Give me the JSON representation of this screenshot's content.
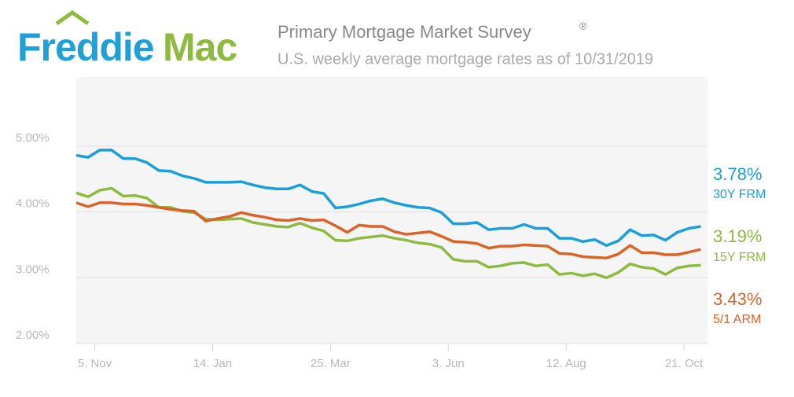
{
  "logo": {
    "part1": "Freddie",
    "part2": "Mac"
  },
  "chart_data": {
    "type": "line",
    "title": "Primary Mortgage Market Survey",
    "title_mark": "®",
    "subtitle": "U.S. weekly average mortgage rates as of 10/31/2019",
    "x": [
      "2018-10-25",
      "2018-11-01",
      "2018-11-08",
      "2018-11-15",
      "2018-11-22",
      "2018-11-29",
      "2018-12-06",
      "2018-12-13",
      "2018-12-20",
      "2018-12-27",
      "2019-01-03",
      "2019-01-10",
      "2019-01-17",
      "2019-01-24",
      "2019-01-31",
      "2019-02-07",
      "2019-02-14",
      "2019-02-21",
      "2019-02-28",
      "2019-03-07",
      "2019-03-14",
      "2019-03-21",
      "2019-03-28",
      "2019-04-04",
      "2019-04-11",
      "2019-04-18",
      "2019-04-25",
      "2019-05-02",
      "2019-05-09",
      "2019-05-16",
      "2019-05-23",
      "2019-05-30",
      "2019-06-06",
      "2019-06-13",
      "2019-06-20",
      "2019-06-27",
      "2019-07-04",
      "2019-07-11",
      "2019-07-18",
      "2019-07-25",
      "2019-08-01",
      "2019-08-08",
      "2019-08-15",
      "2019-08-22",
      "2019-08-29",
      "2019-09-05",
      "2019-09-12",
      "2019-09-19",
      "2019-09-26",
      "2019-10-03",
      "2019-10-10",
      "2019-10-17",
      "2019-10-24",
      "2019-10-31"
    ],
    "xlim": [
      "2018-10-25",
      "2019-11-04"
    ],
    "xticks": [
      {
        "value": "2018-11-05",
        "label": "5. Nov"
      },
      {
        "value": "2019-01-14",
        "label": "14. Jan"
      },
      {
        "value": "2019-03-25",
        "label": "25. Mar"
      },
      {
        "value": "2019-06-03",
        "label": "3. Jun"
      },
      {
        "value": "2019-08-12",
        "label": "12. Aug"
      },
      {
        "value": "2019-10-21",
        "label": "21. Oct"
      }
    ],
    "ylim": [
      2,
      6.05
    ],
    "yticks": [
      {
        "value": 2,
        "label": "2.00%"
      },
      {
        "value": 3,
        "label": "3.00%"
      },
      {
        "value": 4,
        "label": "4.00%"
      },
      {
        "value": 5,
        "label": "5.00%"
      }
    ],
    "grid": true,
    "series": [
      {
        "name": "30Y FRM",
        "color": "#1a9fd9",
        "end_label": "3.78%",
        "values": [
          4.86,
          4.83,
          4.94,
          4.94,
          4.81,
          4.81,
          4.75,
          4.63,
          4.62,
          4.55,
          4.51,
          4.45,
          4.45,
          4.45,
          4.46,
          4.41,
          4.37,
          4.35,
          4.35,
          4.41,
          4.31,
          4.28,
          4.06,
          4.08,
          4.12,
          4.17,
          4.2,
          4.14,
          4.1,
          4.07,
          4.06,
          3.99,
          3.82,
          3.82,
          3.84,
          3.73,
          3.75,
          3.75,
          3.81,
          3.75,
          3.75,
          3.6,
          3.6,
          3.55,
          3.58,
          3.49,
          3.56,
          3.73,
          3.64,
          3.65,
          3.57,
          3.69,
          3.75,
          3.78
        ]
      },
      {
        "name": "15Y FRM",
        "color": "#8dba3f",
        "end_label": "3.19%",
        "values": [
          4.29,
          4.23,
          4.33,
          4.36,
          4.24,
          4.25,
          4.21,
          4.07,
          4.07,
          4.01,
          3.99,
          3.89,
          3.88,
          3.89,
          3.9,
          3.84,
          3.81,
          3.78,
          3.77,
          3.83,
          3.76,
          3.71,
          3.57,
          3.56,
          3.6,
          3.62,
          3.64,
          3.6,
          3.57,
          3.53,
          3.51,
          3.46,
          3.28,
          3.25,
          3.25,
          3.16,
          3.18,
          3.22,
          3.23,
          3.18,
          3.2,
          3.05,
          3.07,
          3.03,
          3.06,
          3.0,
          3.08,
          3.21,
          3.16,
          3.14,
          3.05,
          3.15,
          3.18,
          3.19
        ]
      },
      {
        "name": "5/1 ARM",
        "color": "#d9642a",
        "end_label": "3.43%",
        "values": [
          4.14,
          4.08,
          4.14,
          4.14,
          4.12,
          4.12,
          4.1,
          4.07,
          4.04,
          4.02,
          4.01,
          3.86,
          3.9,
          3.93,
          3.99,
          3.95,
          3.92,
          3.88,
          3.87,
          3.9,
          3.87,
          3.88,
          3.79,
          3.69,
          3.8,
          3.78,
          3.78,
          3.7,
          3.66,
          3.68,
          3.7,
          3.63,
          3.55,
          3.54,
          3.52,
          3.45,
          3.48,
          3.48,
          3.5,
          3.49,
          3.48,
          3.37,
          3.36,
          3.32,
          3.31,
          3.3,
          3.36,
          3.49,
          3.38,
          3.38,
          3.35,
          3.35,
          3.39,
          3.43
        ]
      }
    ]
  }
}
